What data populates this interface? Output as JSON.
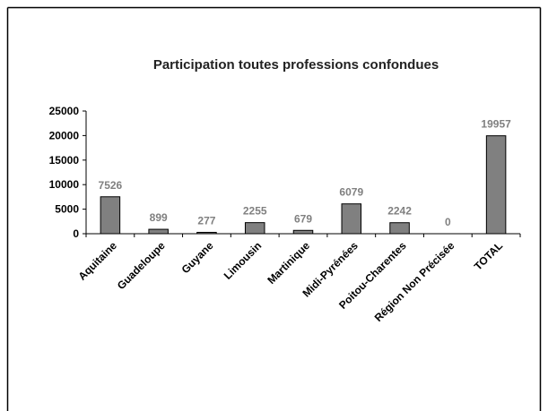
{
  "chart_data": {
    "type": "bar",
    "title": "Participation toutes professions confondues",
    "categories": [
      "Aquitaine",
      "Guadeloupe",
      "Guyane",
      "Limousin",
      "Martinique",
      "Midi-Pyrénées",
      "Poitou-Charentes",
      "Région Non Précisée",
      "TOTAL"
    ],
    "values": [
      7526,
      899,
      277,
      2255,
      679,
      6079,
      2242,
      0,
      19957
    ],
    "color": "#808080",
    "ylim": [
      0,
      25000
    ],
    "yticks": [
      0,
      5000,
      10000,
      15000,
      20000,
      25000
    ],
    "grid": false
  }
}
